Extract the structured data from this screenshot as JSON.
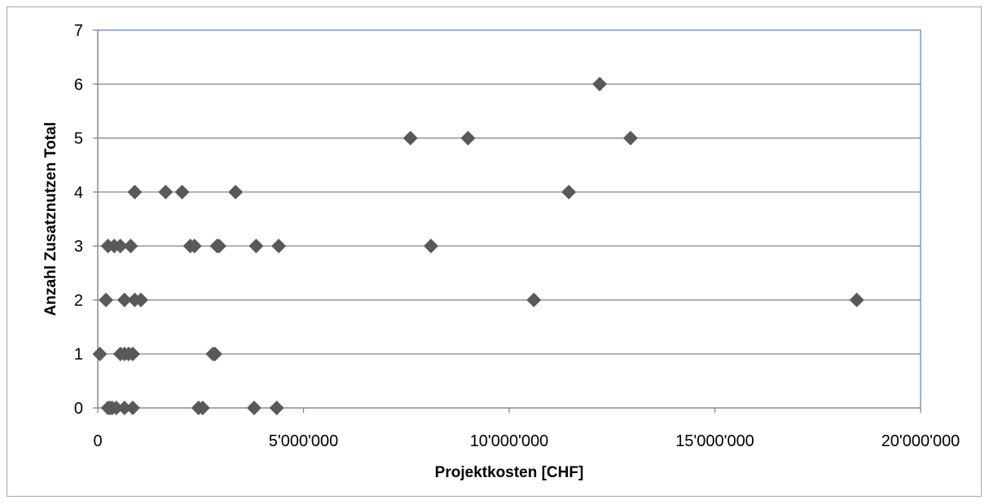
{
  "chart_data": {
    "type": "scatter",
    "title": "",
    "xlabel": "Projektkosten [CHF]",
    "ylabel": "Anzahl Zusatznutzen Total",
    "xlim": [
      0,
      20000000
    ],
    "ylim": [
      0,
      7
    ],
    "x_ticks": [
      0,
      5000000,
      10000000,
      15000000,
      20000000
    ],
    "x_tick_labels": [
      "0",
      "5'000'000",
      "10'000'000",
      "15'000'000",
      "20'000'000"
    ],
    "y_ticks": [
      0,
      1,
      2,
      3,
      4,
      5,
      6,
      7
    ],
    "y_tick_labels": [
      "0",
      "1",
      "2",
      "3",
      "4",
      "5",
      "6",
      "7"
    ],
    "grid": "horizontal",
    "legend": "none",
    "marker": "diamond",
    "colors": {
      "marker": "#595959",
      "grid": "#868686",
      "plot_border": "#4f81bd",
      "axis": "#868686"
    },
    "points": [
      {
        "x": 7600000,
        "y": 5
      },
      {
        "x": 9000000,
        "y": 5
      },
      {
        "x": 12950000,
        "y": 5
      },
      {
        "x": 12200000,
        "y": 6
      },
      {
        "x": 900000,
        "y": 4
      },
      {
        "x": 1650000,
        "y": 4
      },
      {
        "x": 2050000,
        "y": 4
      },
      {
        "x": 3350000,
        "y": 4
      },
      {
        "x": 11450000,
        "y": 4
      },
      {
        "x": 250000,
        "y": 3
      },
      {
        "x": 400000,
        "y": 3
      },
      {
        "x": 550000,
        "y": 3
      },
      {
        "x": 800000,
        "y": 3
      },
      {
        "x": 2250000,
        "y": 3
      },
      {
        "x": 2350000,
        "y": 3
      },
      {
        "x": 2900000,
        "y": 3
      },
      {
        "x": 2950000,
        "y": 3
      },
      {
        "x": 3850000,
        "y": 3
      },
      {
        "x": 4400000,
        "y": 3
      },
      {
        "x": 8100000,
        "y": 3
      },
      {
        "x": 200000,
        "y": 2
      },
      {
        "x": 650000,
        "y": 2
      },
      {
        "x": 900000,
        "y": 2
      },
      {
        "x": 1050000,
        "y": 2
      },
      {
        "x": 10600000,
        "y": 2
      },
      {
        "x": 18450000,
        "y": 2
      },
      {
        "x": 50000,
        "y": 1
      },
      {
        "x": 550000,
        "y": 1
      },
      {
        "x": 650000,
        "y": 1
      },
      {
        "x": 750000,
        "y": 1
      },
      {
        "x": 850000,
        "y": 1
      },
      {
        "x": 2800000,
        "y": 1
      },
      {
        "x": 2850000,
        "y": 1
      },
      {
        "x": 250000,
        "y": 0
      },
      {
        "x": 300000,
        "y": 0
      },
      {
        "x": 350000,
        "y": 0
      },
      {
        "x": 450000,
        "y": 0
      },
      {
        "x": 650000,
        "y": 0
      },
      {
        "x": 850000,
        "y": 0
      },
      {
        "x": 2450000,
        "y": 0
      },
      {
        "x": 2550000,
        "y": 0
      },
      {
        "x": 3800000,
        "y": 0
      },
      {
        "x": 4350000,
        "y": 0
      }
    ]
  }
}
